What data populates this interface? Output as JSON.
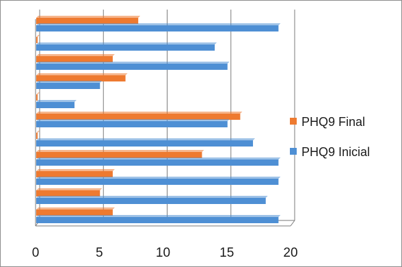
{
  "chart_data": {
    "type": "bar",
    "orientation": "horizontal",
    "categories": [
      "",
      "",
      "",
      "",
      "",
      "",
      "",
      "",
      "",
      "",
      ""
    ],
    "series": [
      {
        "name": "PHQ9 Inicial",
        "color": "#4e8fd4",
        "values": [
          19,
          14,
          15,
          5,
          3,
          15,
          17,
          19,
          19,
          18,
          19
        ]
      },
      {
        "name": "PHQ9 Final",
        "color": "#ee7a30",
        "values": [
          8,
          0,
          6,
          7,
          0,
          16,
          0,
          13,
          6,
          5,
          6
        ]
      }
    ],
    "xlim": [
      0,
      20
    ],
    "xticks": [
      "0",
      "5",
      "10",
      "15",
      "20"
    ],
    "title": "",
    "xlabel": "",
    "ylabel": "",
    "grid": "vertical",
    "legend_position": "right",
    "legend": [
      {
        "label": "PHQ9 Final",
        "color": "#ee7a30"
      },
      {
        "label": "PHQ9 Inicial",
        "color": "#4e8fd4"
      }
    ]
  }
}
